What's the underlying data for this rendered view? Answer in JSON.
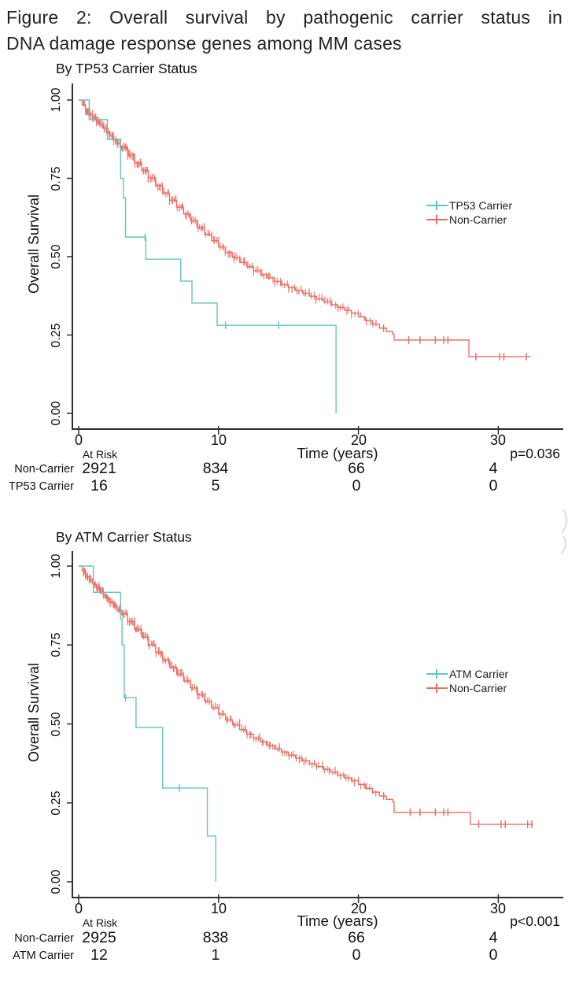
{
  "figure_title": {
    "line1": "Figure 2: Overall survival by pathogenic carrier status in",
    "line2": "DNA damage response genes among MM cases"
  },
  "colors": {
    "carrier_teal": "#64c3c5",
    "noncarrier_red": "#e87167",
    "axis": "#2e2e2e",
    "text": "#111111",
    "page_artifact_gray": "#c9c9c9"
  },
  "chart_data": [
    {
      "type": "line",
      "subtype": "kaplan_meier_step",
      "title": "By TP53 Carrier Status",
      "xlabel": "Time (years)",
      "ylabel": "Overall Survival",
      "xticks": [
        0,
        10,
        20,
        30
      ],
      "ytick_labels": [
        "1.00",
        "0.75",
        "0.50",
        "0.25",
        "0.00"
      ],
      "xlim": [
        0,
        34.6
      ],
      "ylim": [
        0,
        1
      ],
      "grid": false,
      "legend_position": "right",
      "p_value_label": "p=0.036",
      "series": [
        {
          "name": "TP53 Carrier",
          "color": "#64c3c5",
          "times": [
            0,
            0.75,
            2.05,
            3.0,
            3.2,
            3.35,
            4.8,
            7.3,
            8.1,
            9.9,
            18.4
          ],
          "survival": [
            1,
            0.9375,
            0.875,
            0.75,
            0.6875,
            0.5625,
            0.492,
            0.422,
            0.352,
            0.281,
            0
          ],
          "censor_times": [
            4.75,
            10.5,
            14.3
          ]
        },
        {
          "name": "Non-Carrier",
          "color": "#e87167",
          "times": [
            0,
            0.25,
            0.5,
            0.75,
            1,
            1.25,
            1.5,
            1.75,
            2,
            2.25,
            2.5,
            2.75,
            3,
            3.5,
            4,
            4.5,
            5,
            5.5,
            6,
            6.5,
            7,
            7.5,
            8,
            8.5,
            9,
            9.5,
            10,
            10.5,
            11,
            11.5,
            12,
            12.5,
            13,
            13.5,
            14,
            14.5,
            15,
            15.5,
            16,
            16.5,
            17,
            17.5,
            18,
            18.5,
            19,
            19.5,
            20,
            20.5,
            21,
            21.5,
            22,
            22.45,
            22.55,
            27.9,
            32.3
          ],
          "survival": [
            1,
            0.985,
            0.966,
            0.955,
            0.943,
            0.932,
            0.921,
            0.909,
            0.897,
            0.885,
            0.873,
            0.861,
            0.849,
            0.824,
            0.799,
            0.775,
            0.751,
            0.727,
            0.703,
            0.68,
            0.658,
            0.636,
            0.614,
            0.592,
            0.571,
            0.551,
            0.531,
            0.513,
            0.497,
            0.482,
            0.468,
            0.455,
            0.443,
            0.432,
            0.421,
            0.411,
            0.401,
            0.392,
            0.383,
            0.374,
            0.365,
            0.356,
            0.347,
            0.338,
            0.329,
            0.32,
            0.308,
            0.296,
            0.284,
            0.272,
            0.261,
            0.253,
            0.234,
            0.181,
            0.181
          ],
          "censor_times": [
            21.8,
            23.6,
            24.4,
            25.5,
            26.1,
            26.4,
            28.4,
            30.1,
            30.4,
            32.0
          ],
          "dense_censor_range": [
            0.3,
            21.3
          ]
        }
      ],
      "at_risk_table": {
        "header": "At Risk",
        "time_points": [
          0,
          10,
          20,
          30
        ],
        "rows": [
          {
            "label": "Non-Carrier",
            "counts": [
              "2921",
              "834",
              "66",
              "4"
            ]
          },
          {
            "label": "TP53 Carrier",
            "counts": [
              "16",
              "5",
              "0",
              "0"
            ]
          }
        ]
      }
    },
    {
      "type": "line",
      "subtype": "kaplan_meier_step",
      "title": "By ATM Carrier Status",
      "xlabel": "Time (years)",
      "ylabel": "Overall Survival",
      "xticks": [
        0,
        10,
        20,
        30
      ],
      "ytick_labels": [
        "1.00",
        "0.75",
        "0.50",
        "0.25",
        "0.00"
      ],
      "xlim": [
        0,
        34.6
      ],
      "ylim": [
        0,
        1
      ],
      "grid": false,
      "legend_position": "right",
      "p_value_label": "p<0.001",
      "series": [
        {
          "name": "ATM Carrier",
          "color": "#64c3c5",
          "times": [
            0,
            1.05,
            3.0,
            3.1,
            3.25,
            4.1,
            6.0,
            9.2,
            9.8
          ],
          "survival": [
            1,
            0.917,
            0.833,
            0.75,
            0.583,
            0.489,
            0.297,
            0.145,
            0
          ],
          "censor_times": [
            3.35,
            7.2
          ]
        },
        {
          "name": "Non-Carrier",
          "color": "#e87167",
          "times": [
            0,
            0.25,
            0.5,
            0.75,
            1,
            1.25,
            1.5,
            1.75,
            2,
            2.25,
            2.5,
            2.75,
            3,
            3.5,
            4,
            4.5,
            5,
            5.5,
            6,
            6.5,
            7,
            7.5,
            8,
            8.5,
            9,
            9.5,
            10,
            10.5,
            11,
            11.5,
            12,
            12.5,
            13,
            13.5,
            14,
            14.5,
            15,
            15.5,
            16,
            16.5,
            17,
            17.5,
            18,
            18.5,
            19,
            19.5,
            20,
            20.5,
            21,
            21.5,
            22,
            22.45,
            22.55,
            28.0,
            32.5
          ],
          "survival": [
            1,
            0.985,
            0.966,
            0.955,
            0.943,
            0.932,
            0.921,
            0.909,
            0.897,
            0.885,
            0.873,
            0.861,
            0.849,
            0.824,
            0.799,
            0.775,
            0.751,
            0.727,
            0.703,
            0.68,
            0.658,
            0.636,
            0.614,
            0.592,
            0.571,
            0.551,
            0.531,
            0.513,
            0.497,
            0.482,
            0.468,
            0.455,
            0.443,
            0.432,
            0.421,
            0.411,
            0.401,
            0.392,
            0.383,
            0.374,
            0.365,
            0.356,
            0.347,
            0.338,
            0.329,
            0.32,
            0.308,
            0.296,
            0.284,
            0.272,
            0.261,
            0.253,
            0.22,
            0.182,
            0.182
          ],
          "censor_times": [
            21.8,
            23.7,
            24.4,
            25.5,
            26.1,
            26.4,
            28.6,
            30.2,
            30.5,
            32.1,
            32.4
          ],
          "dense_censor_range": [
            0.3,
            21.3
          ]
        }
      ],
      "at_risk_table": {
        "header": "At Risk",
        "time_points": [
          0,
          10,
          20,
          30
        ],
        "rows": [
          {
            "label": "Non-Carrier",
            "counts": [
              "2925",
              "838",
              "66",
              "4"
            ]
          },
          {
            "label": "ATM Carrier",
            "counts": [
              "12",
              "1",
              "0",
              "0"
            ]
          }
        ]
      }
    }
  ]
}
